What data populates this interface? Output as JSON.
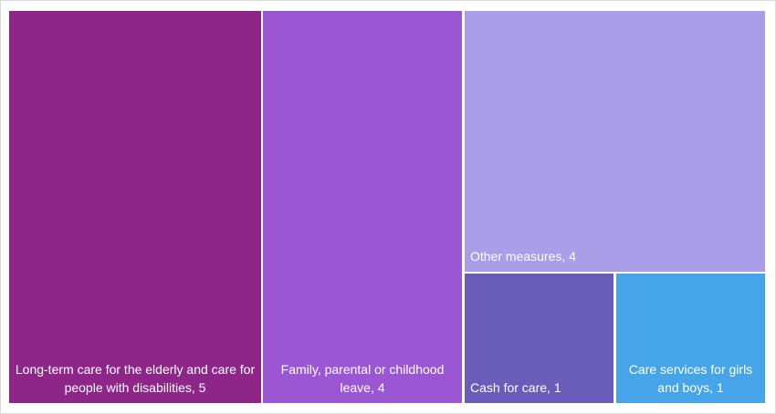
{
  "chart_data": {
    "type": "treemap",
    "title": "",
    "items": [
      {
        "label": "Long-term care for the elderly and care for people with disabilities, 5",
        "name": "Long-term care for the elderly and care for people with disabilities",
        "value": 5,
        "color": "#8E2689"
      },
      {
        "label": "Family, parental or childhood leave, 4",
        "name": "Family, parental or childhood leave",
        "value": 4,
        "color": "#9A56D3"
      },
      {
        "label": "Other measures, 4",
        "name": "Other measures",
        "value": 4,
        "color": "#AA9EE8"
      },
      {
        "label": "Cash for care, 1",
        "name": "Cash for care",
        "value": 1,
        "color": "#6A5CB9"
      },
      {
        "label": "Care services for girls and boys, 1",
        "name": "Care services for girls and boys",
        "value": 1,
        "color": "#45A5E8"
      }
    ]
  }
}
